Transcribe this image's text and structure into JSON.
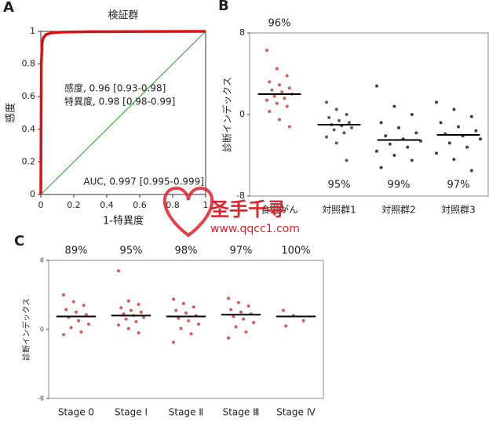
{
  "chart_data": [
    {
      "type": "line",
      "panel": "A",
      "title": "検証群",
      "xlabel": "1-特異度",
      "ylabel": "感度",
      "x": [
        0,
        0.003,
        0.008,
        0.015,
        0.03,
        0.06,
        0.12,
        0.3,
        1
      ],
      "series": [
        {
          "color": "#dd1111",
          "values": [
            0,
            0.8,
            0.93,
            0.96,
            0.98,
            0.99,
            0.995,
            0.998,
            1
          ]
        }
      ],
      "reference_color": "#44aa44",
      "annotations": [
        "感度, 0.96 [0.93-0.98]",
        "特異度, 0.98 [0.98-0.99]",
        "AUC, 0.997 [0.995-0.999]"
      ],
      "xlim": [
        0,
        1
      ],
      "ylim": [
        0,
        1
      ],
      "xticks": [
        0,
        0.2,
        0.4,
        0.6,
        0.8,
        1
      ],
      "yticks": [
        0,
        0.2,
        0.4,
        0.6,
        0.8,
        1
      ]
    },
    {
      "type": "strip",
      "panel": "B",
      "ylabel": "診断インデックス",
      "categories": [
        "食道がん",
        "対照群1",
        "対照群2",
        "対照群3"
      ],
      "percent_labels": [
        "96%",
        "95%",
        "99%",
        "97%"
      ],
      "colors": [
        "#d03030",
        "#333333",
        "#111111",
        "#111111"
      ],
      "medians": [
        2,
        -1,
        -2.5,
        -2
      ],
      "points": [
        [
          6.3,
          4.5,
          3.8,
          3.2,
          2.9,
          2.6,
          2.4,
          2.2,
          2,
          1.8,
          1.6,
          1.4,
          1.1,
          0.8,
          0.3,
          -0.5,
          -1.2
        ],
        [
          1.2,
          0.5,
          0,
          -0.3,
          -0.6,
          -0.8,
          -1,
          -1.1,
          -1.3,
          -1.5,
          -1.8,
          -2.2,
          -2.8,
          -4.5
        ],
        [
          2.8,
          0.8,
          0,
          -0.8,
          -1.3,
          -1.8,
          -2.1,
          -2.4,
          -2.6,
          -2.9,
          -3.2,
          -3.6,
          -4,
          -4.5,
          -5.2
        ],
        [
          1.2,
          0.5,
          -0.2,
          -0.8,
          -1.2,
          -1.6,
          -1.9,
          -2.1,
          -2.4,
          -2.8,
          -3.2,
          -3.8,
          -4.4,
          -5.5
        ]
      ],
      "ylim": [
        -8,
        8
      ],
      "yticks": [
        -8,
        0,
        8
      ]
    },
    {
      "type": "strip",
      "panel": "C",
      "ylabel": "診断インデックス",
      "categories": [
        "Stage 0",
        "Stage Ⅰ",
        "Stage Ⅱ",
        "Stage Ⅲ",
        "Stage Ⅳ"
      ],
      "percent_labels": [
        "89%",
        "95%",
        "98%",
        "97%",
        "100%"
      ],
      "colors": [
        "#d03030",
        "#d03030",
        "#d03030",
        "#d03030",
        "#d03030"
      ],
      "medians": [
        1.5,
        1.6,
        1.5,
        1.7,
        1.5
      ],
      "points": [
        [
          4,
          3.2,
          2.8,
          2.3,
          2,
          1.7,
          1.4,
          1,
          0.6,
          0.2,
          -0.3,
          -0.6
        ],
        [
          6.8,
          3.3,
          2.9,
          2.5,
          2.2,
          2,
          1.8,
          1.6,
          1.4,
          1.2,
          0.9,
          0.5,
          0.1,
          -0.4
        ],
        [
          3.5,
          3,
          2.6,
          2.2,
          1.9,
          1.6,
          1.3,
          1,
          0.6,
          0.1,
          -0.5,
          -1.5
        ],
        [
          3.6,
          3.1,
          2.7,
          2.3,
          2,
          1.8,
          1.5,
          1.2,
          0.8,
          0.3,
          -0.3,
          -1
        ],
        [
          2.2,
          1.6,
          1,
          0.4
        ]
      ],
      "ylim": [
        -8,
        8
      ],
      "yticks": [
        -8,
        0,
        8
      ]
    }
  ],
  "watermark": {
    "title": "圣手千寻",
    "url": "www.qqcc1.com"
  }
}
